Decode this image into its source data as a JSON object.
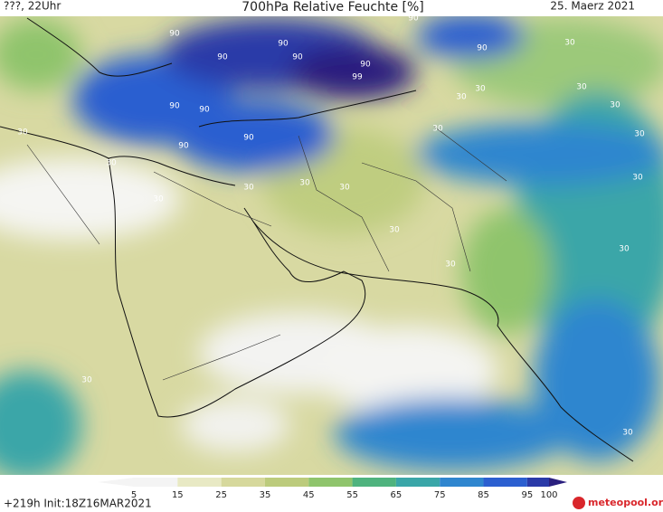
{
  "header": {
    "left": "???, 22Uhr",
    "title": "700hPa Relative Feuchte [%]",
    "date": "25. Maerz 2021"
  },
  "contour_labels": [
    "90",
    "90",
    "90",
    "90",
    "90",
    "90",
    "90",
    "99",
    "90",
    "90",
    "90",
    "90",
    "30",
    "30",
    "30",
    "30",
    "30",
    "30",
    "30",
    "30",
    "30",
    "30",
    "30",
    "30",
    "30",
    "30",
    "30",
    "30",
    "30",
    "30",
    "30"
  ],
  "colorbar": {
    "ticks": [
      5,
      15,
      25,
      35,
      45,
      55,
      65,
      75,
      85,
      95,
      100
    ],
    "colors": [
      "#f4f4f4",
      "#e8e9c4",
      "#d6d89c",
      "#bccb7c",
      "#8fc46c",
      "#4fb37e",
      "#3aa6a8",
      "#2f86cf",
      "#2b5fd0",
      "#2a3aa8",
      "#2a1f7e"
    ]
  },
  "footer": {
    "run": "+219h Init:18Z16MAR2021",
    "logo": "meteopool.org"
  }
}
